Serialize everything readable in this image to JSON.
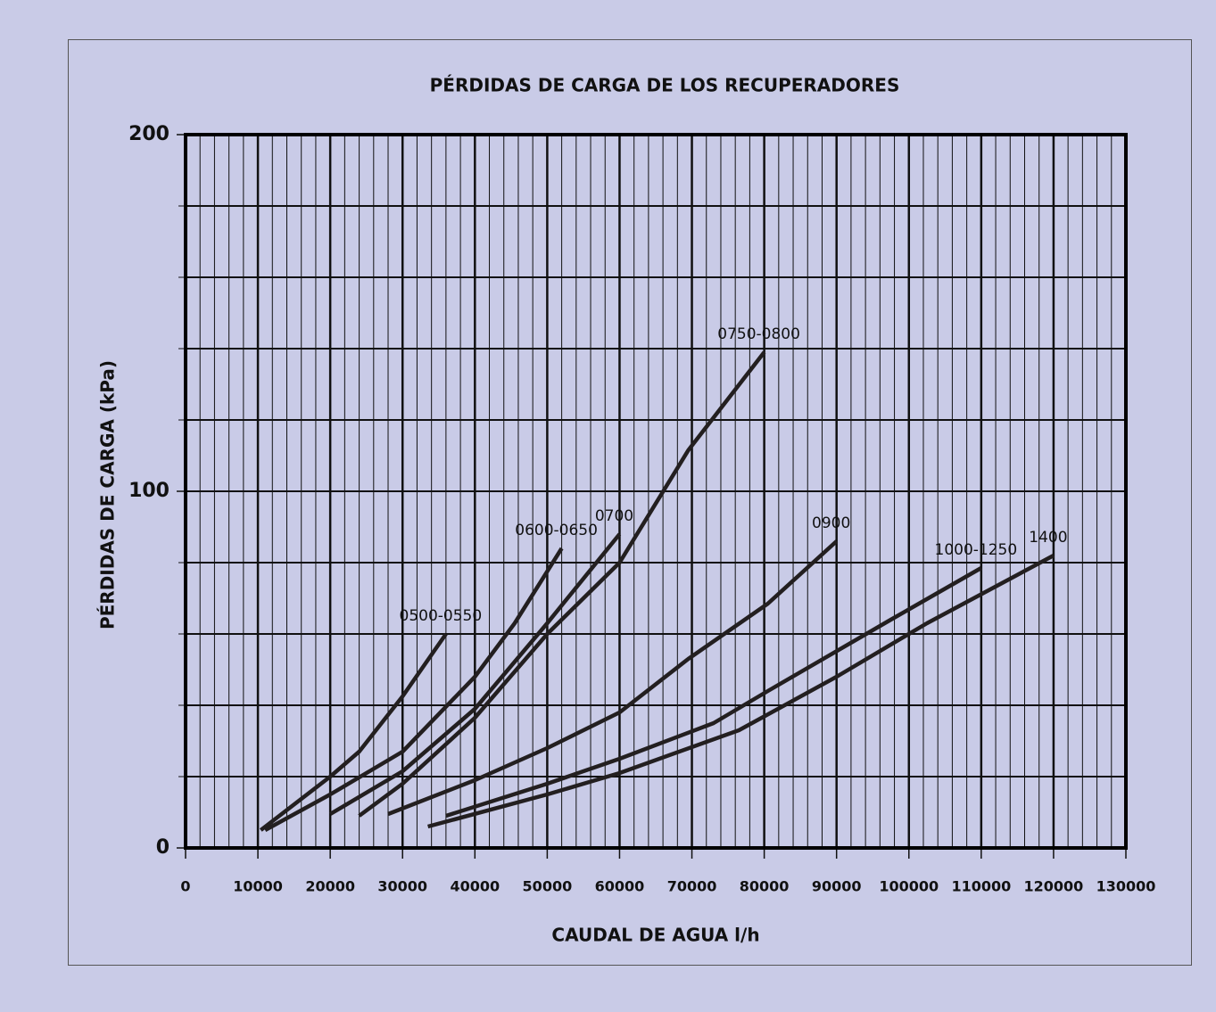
{
  "chart_data": {
    "type": "line",
    "title": "PÉRDIDAS DE CARGA DE LOS RECUPERADORES",
    "x_label": "CAUDAL DE AGUA l/h",
    "y_label": "PÉRDIDAS DE CARGA (kPa)",
    "xlim": [
      0,
      130000
    ],
    "ylim": [
      0,
      200
    ],
    "xticks": [
      0,
      10000,
      20000,
      30000,
      40000,
      50000,
      60000,
      70000,
      80000,
      90000,
      100000,
      110000,
      120000,
      130000
    ],
    "yticks": [
      0,
      100,
      200
    ],
    "x_minor_step": 2000,
    "y_minor_step": 20,
    "grid": true,
    "series": [
      {
        "name": "0500-0550",
        "color": "#231f20",
        "x": [
          10400,
          20000,
          24000,
          30000,
          36000
        ],
        "values": [
          5,
          20,
          27,
          42.5,
          60
        ]
      },
      {
        "name": "0600-0650",
        "color": "#231f20",
        "x": [
          11000,
          20000,
          30000,
          40000,
          45500,
          52000
        ],
        "values": [
          5,
          15,
          27,
          48,
          63,
          84
        ]
      },
      {
        "name": "0700",
        "color": "#231f20",
        "x": [
          20000,
          30000,
          40000,
          50000,
          60000
        ],
        "values": [
          9.5,
          21.5,
          39,
          63,
          88
        ]
      },
      {
        "name": "0750-0800",
        "color": "#231f20",
        "x": [
          24000,
          30000,
          40000,
          50000,
          60000,
          69500,
          80000
        ],
        "values": [
          9,
          18,
          36.5,
          60,
          80,
          111.5,
          139
        ]
      },
      {
        "name": "0900",
        "color": "#231f20",
        "x": [
          28000,
          40000,
          50000,
          60000,
          69500,
          80500,
          90000
        ],
        "values": [
          9.5,
          19,
          28,
          38,
          53,
          68.5,
          86
        ]
      },
      {
        "name": "1000-1250",
        "color": "#231f20",
        "x": [
          36000,
          50000,
          60000,
          73000,
          80500,
          97500,
          110000
        ],
        "values": [
          9,
          18,
          25,
          35,
          44,
          64,
          78.5
        ]
      },
      {
        "name": "1400",
        "color": "#231f20",
        "x": [
          33500,
          50000,
          60000,
          76500,
          90000,
          102500,
          120000
        ],
        "values": [
          6,
          15,
          21,
          33,
          48,
          63,
          82
        ]
      }
    ]
  }
}
